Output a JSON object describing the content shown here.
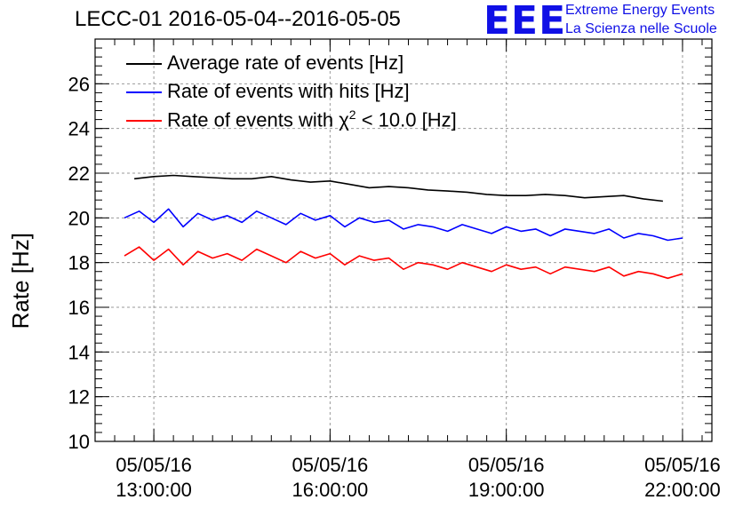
{
  "header": {
    "title": "LECC-01 2016-05-04--2016-05-05",
    "logo_text": "EEE",
    "logo_line1": "Extreme Energy Events",
    "logo_line2": "La Scienza nelle Scuole"
  },
  "colors": {
    "average": "#000000",
    "hits": "#0000ff",
    "chi2": "#ff0000",
    "logo": "#1010e6",
    "grid": "#9a9a9a"
  },
  "chart_data": {
    "type": "line",
    "ylabel": "Rate [Hz]",
    "xlabel": "",
    "ylim": [
      10,
      28
    ],
    "yticks": [
      10,
      12,
      14,
      16,
      18,
      20,
      22,
      24,
      26
    ],
    "xlim": [
      "05/05/16 12:00:00",
      "05/05/16 22:30:00"
    ],
    "xticks": [
      {
        "date": "05/05/16",
        "time": "13:00:00"
      },
      {
        "date": "05/05/16",
        "time": "16:00:00"
      },
      {
        "date": "05/05/16",
        "time": "19:00:00"
      },
      {
        "date": "05/05/16",
        "time": "22:00:00"
      }
    ],
    "grid": true,
    "legend_position": "top-left",
    "series": [
      {
        "name": "Average rate of events [Hz]",
        "color": "#000000",
        "x": [
          "12:40",
          "13:00",
          "13:20",
          "13:40",
          "14:00",
          "14:20",
          "14:40",
          "15:00",
          "15:20",
          "15:40",
          "16:00",
          "16:20",
          "16:40",
          "17:00",
          "17:20",
          "17:40",
          "18:00",
          "18:20",
          "18:40",
          "19:00",
          "19:20",
          "19:40",
          "20:00",
          "20:20",
          "20:40",
          "21:00",
          "21:20",
          "21:40"
        ],
        "values": [
          21.75,
          21.85,
          21.9,
          21.85,
          21.8,
          21.75,
          21.75,
          21.85,
          21.7,
          21.6,
          21.65,
          21.5,
          21.35,
          21.4,
          21.35,
          21.25,
          21.2,
          21.15,
          21.05,
          21.0,
          21.0,
          21.05,
          21.0,
          20.9,
          20.95,
          21.0,
          20.85,
          20.75
        ]
      },
      {
        "name": "Rate of events with hits [Hz]",
        "color": "#0000ff",
        "x": [
          "12:30",
          "12:45",
          "13:00",
          "13:15",
          "13:30",
          "13:45",
          "14:00",
          "14:15",
          "14:30",
          "14:45",
          "15:00",
          "15:15",
          "15:30",
          "15:45",
          "16:00",
          "16:15",
          "16:30",
          "16:45",
          "17:00",
          "17:15",
          "17:30",
          "17:45",
          "18:00",
          "18:15",
          "18:30",
          "18:45",
          "19:00",
          "19:15",
          "19:30",
          "19:45",
          "20:00",
          "20:15",
          "20:30",
          "20:45",
          "21:00",
          "21:15",
          "21:30",
          "21:45",
          "22:00"
        ],
        "values": [
          20.0,
          20.3,
          19.8,
          20.4,
          19.6,
          20.2,
          19.9,
          20.1,
          19.8,
          20.3,
          20.0,
          19.7,
          20.2,
          19.9,
          20.1,
          19.6,
          20.0,
          19.8,
          19.9,
          19.5,
          19.7,
          19.6,
          19.4,
          19.7,
          19.5,
          19.3,
          19.6,
          19.4,
          19.5,
          19.2,
          19.5,
          19.4,
          19.3,
          19.5,
          19.1,
          19.3,
          19.2,
          19.0,
          19.1
        ]
      },
      {
        "name": "Rate of events with χ² < 10.0 [Hz]",
        "color": "#ff0000",
        "x": [
          "12:30",
          "12:45",
          "13:00",
          "13:15",
          "13:30",
          "13:45",
          "14:00",
          "14:15",
          "14:30",
          "14:45",
          "15:00",
          "15:15",
          "15:30",
          "15:45",
          "16:00",
          "16:15",
          "16:30",
          "16:45",
          "17:00",
          "17:15",
          "17:30",
          "17:45",
          "18:00",
          "18:15",
          "18:30",
          "18:45",
          "19:00",
          "19:15",
          "19:30",
          "19:45",
          "20:00",
          "20:15",
          "20:30",
          "20:45",
          "21:00",
          "21:15",
          "21:30",
          "21:45",
          "22:00"
        ],
        "values": [
          18.3,
          18.7,
          18.1,
          18.6,
          17.9,
          18.5,
          18.2,
          18.4,
          18.1,
          18.6,
          18.3,
          18.0,
          18.5,
          18.2,
          18.4,
          17.9,
          18.3,
          18.1,
          18.2,
          17.7,
          18.0,
          17.9,
          17.7,
          18.0,
          17.8,
          17.6,
          17.9,
          17.7,
          17.8,
          17.5,
          17.8,
          17.7,
          17.6,
          17.8,
          17.4,
          17.6,
          17.5,
          17.3,
          17.5
        ]
      }
    ]
  },
  "legend": {
    "item1": "Average rate of events [Hz]",
    "item2": "Rate of events with hits [Hz]",
    "item3_prefix": "Rate of events with ",
    "item3_chi": "χ",
    "item3_sup": "2",
    "item3_suffix": " < 10.0 [Hz]"
  }
}
